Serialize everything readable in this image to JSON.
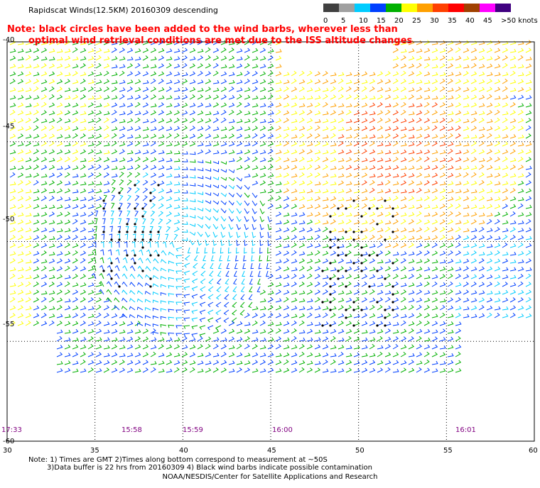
{
  "title": "Rapidscat Winds(12.5KM) 20160309 descending",
  "note": {
    "line1": "Note: black circles have been added to the wind barbs, wherever less than",
    "line2": "optimal wind retrieval conditions are met due to the ISS altitude changes"
  },
  "legend": {
    "labels": [
      "0",
      "5",
      "10",
      "15",
      "20",
      "25",
      "30",
      "35",
      "40",
      "45",
      ">50 knots"
    ],
    "colors": [
      "#404040",
      "#a0a0a0",
      "#00ccff",
      "#0040ff",
      "#00b000",
      "#ffff00",
      "#ffa000",
      "#ff4000",
      "#ff0000",
      "#a04000",
      "#ff00ff",
      "#400080"
    ]
  },
  "axes": {
    "lat_labels": [
      "-40",
      "-45",
      "-50",
      "-55",
      "-60"
    ],
    "lon_labels": [
      "30",
      "35",
      "40",
      "45",
      "50",
      "55",
      "60"
    ]
  },
  "times": [
    "17:33",
    "15:58",
    "15:59",
    "16:00",
    "16:01"
  ],
  "footnotes": {
    "line1": "Note: 1) Times are GMT 2)Times along bottom correspond to measurement at ~50S",
    "line2": "3)Data buffer is 22 hrs from 20160309 4) Black wind barbs indicate possible contamination"
  },
  "credit": "NOAA/NESDIS/Center for Satellite Applications and Research",
  "map": {
    "lon_range": [
      30,
      60
    ],
    "lat_range": [
      -40,
      -60
    ],
    "wind_field": {
      "description_colors": {
        "calm": "#00ccff",
        "light": "#0040ff",
        "moderate": "#00b000",
        "fresh": "#ffff00",
        "strong": "#ffa000",
        "gale": "#ff4000",
        "flagged": "#000000"
      }
    }
  }
}
